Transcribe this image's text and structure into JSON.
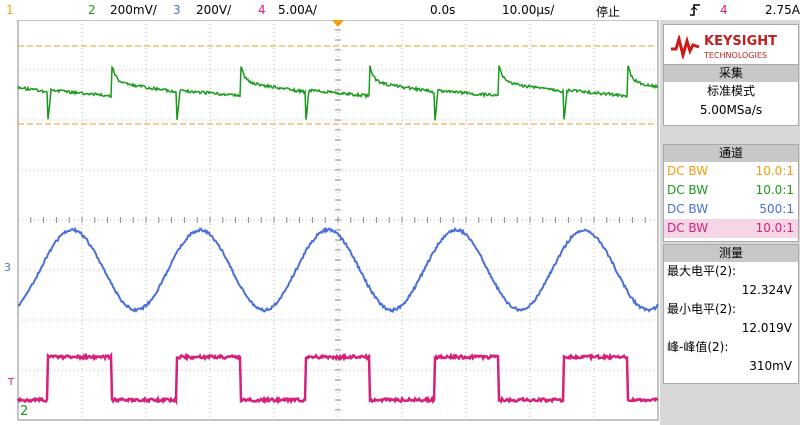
{
  "top_bar": {
    "ch1": "1",
    "ch2": "2",
    "ch2_scale": "200mV/",
    "ch3": "3",
    "ch3_scale": "200V/",
    "ch4": "4",
    "ch4_scale": "5.00A/",
    "time_offset": "0.0s",
    "time_scale": "10.00µs/",
    "status": "停止",
    "trigger_source": "4",
    "trigger_level": "2.75A"
  },
  "brand": {
    "name": "KEYSIGHT",
    "sub": "TECHNOLOGIES"
  },
  "acquisition": {
    "title": "采集",
    "mode": "标准模式",
    "rate": "5.00MSa/s"
  },
  "channels": {
    "title": "通道",
    "rows": [
      {
        "coupling": "DC BW",
        "probe": "10.0:1"
      },
      {
        "coupling": "DC BW",
        "probe": "10.0:1"
      },
      {
        "coupling": "DC BW",
        "probe": "500:1"
      },
      {
        "coupling": "DC BW",
        "probe": "10.0:1"
      }
    ]
  },
  "measurements": {
    "title": "测量",
    "items": [
      {
        "label": "最大电平(2):",
        "value": "12.324V"
      },
      {
        "label": "最小电平(2):",
        "value": "12.019V"
      },
      {
        "label": "峰-峰值(2):",
        "value": "310mV"
      }
    ]
  },
  "markers": {
    "ch3": "3",
    "trigger": "T",
    "ch2": "2"
  }
}
